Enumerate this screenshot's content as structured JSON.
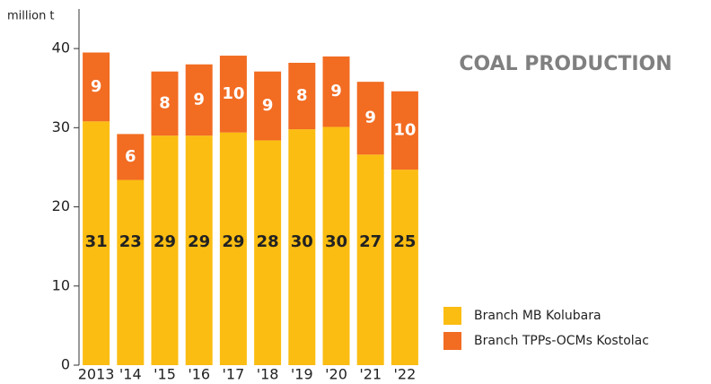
{
  "chart_data": {
    "type": "stacked_bar",
    "title": "COAL PRODUCTION",
    "y_label": "million t",
    "categories": [
      "2013",
      "'14",
      "'15",
      "'16",
      "'17",
      "'18",
      "'19",
      "'20",
      "'21",
      "'22"
    ],
    "series": [
      {
        "name": "Branch MB Kolubara",
        "color": "#fbbd12",
        "values": [
          30.8,
          23.4,
          29.0,
          29.0,
          29.4,
          28.4,
          29.8,
          30.1,
          26.6,
          24.7
        ],
        "value_labels": [
          "31",
          "23",
          "29",
          "29",
          "29",
          "28",
          "30",
          "30",
          "27",
          "25"
        ]
      },
      {
        "name": "Branch TPPs-OCMs Kostolac",
        "color": "#f26c22",
        "values": [
          8.7,
          5.8,
          8.1,
          9.0,
          9.7,
          8.7,
          8.4,
          8.9,
          9.2,
          9.9
        ],
        "value_labels": [
          "9",
          "6",
          "8",
          "9",
          "10",
          "9",
          "8",
          "9",
          "9",
          "10"
        ]
      }
    ],
    "ylim": [
      0,
      45
    ],
    "yticks": [
      0,
      10,
      20,
      30,
      40
    ],
    "legend": "bottom-right"
  }
}
